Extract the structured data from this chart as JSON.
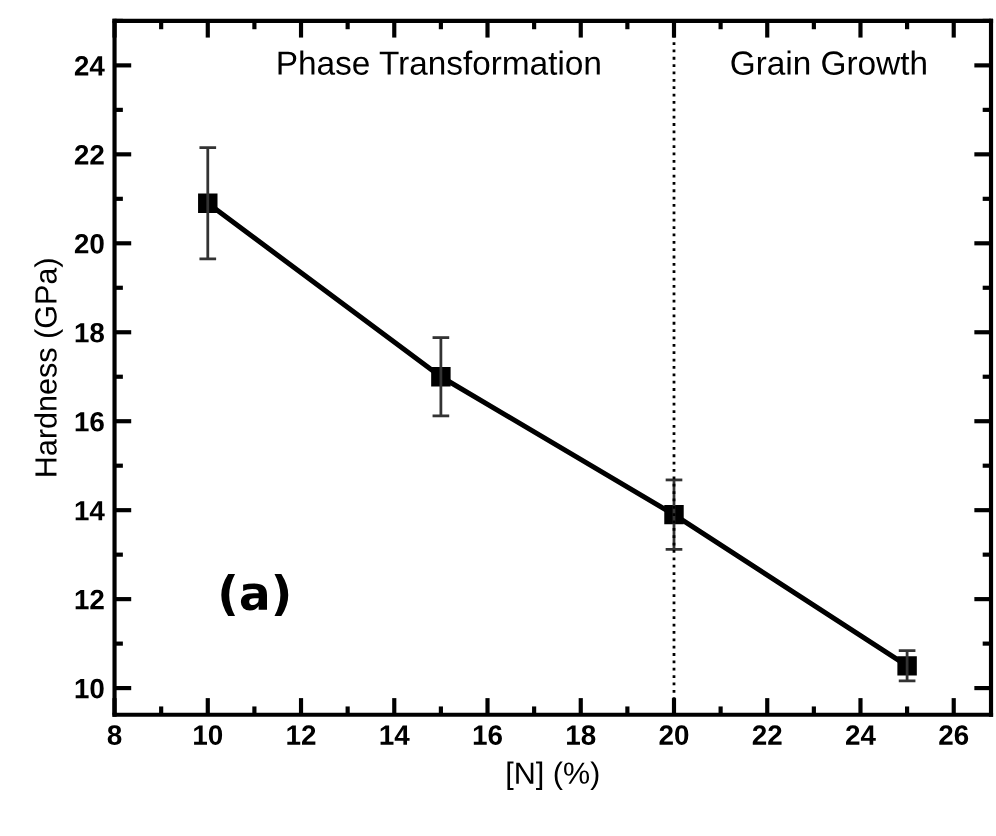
{
  "chart_data": {
    "type": "line",
    "xlabel": "[N] (%)",
    "ylabel": "Hardness (GPa)",
    "x": [
      10,
      15,
      20,
      25
    ],
    "series": [
      {
        "color": "#000000",
        "values": [
          20.9,
          17.0,
          13.9,
          10.5
        ],
        "errors": [
          1.25,
          0.88,
          0.78,
          0.34
        ]
      }
    ],
    "marker": "square",
    "line_style": "solid",
    "xlim": [
      8,
      26.8
    ],
    "ylim": [
      9.4,
      25
    ],
    "xticks": [
      8,
      10,
      12,
      14,
      16,
      18,
      20,
      22,
      24,
      26
    ],
    "yticks": [
      10,
      12,
      14,
      16,
      18,
      20,
      22,
      24
    ],
    "ref_lines": [
      {
        "axis": "x",
        "value": 20,
        "color": "#000000",
        "line_style": "dotted"
      }
    ],
    "annotations": [
      "Phase Transformation",
      "Grain Growth",
      "(a)"
    ],
    "grid": false,
    "legend": false
  }
}
